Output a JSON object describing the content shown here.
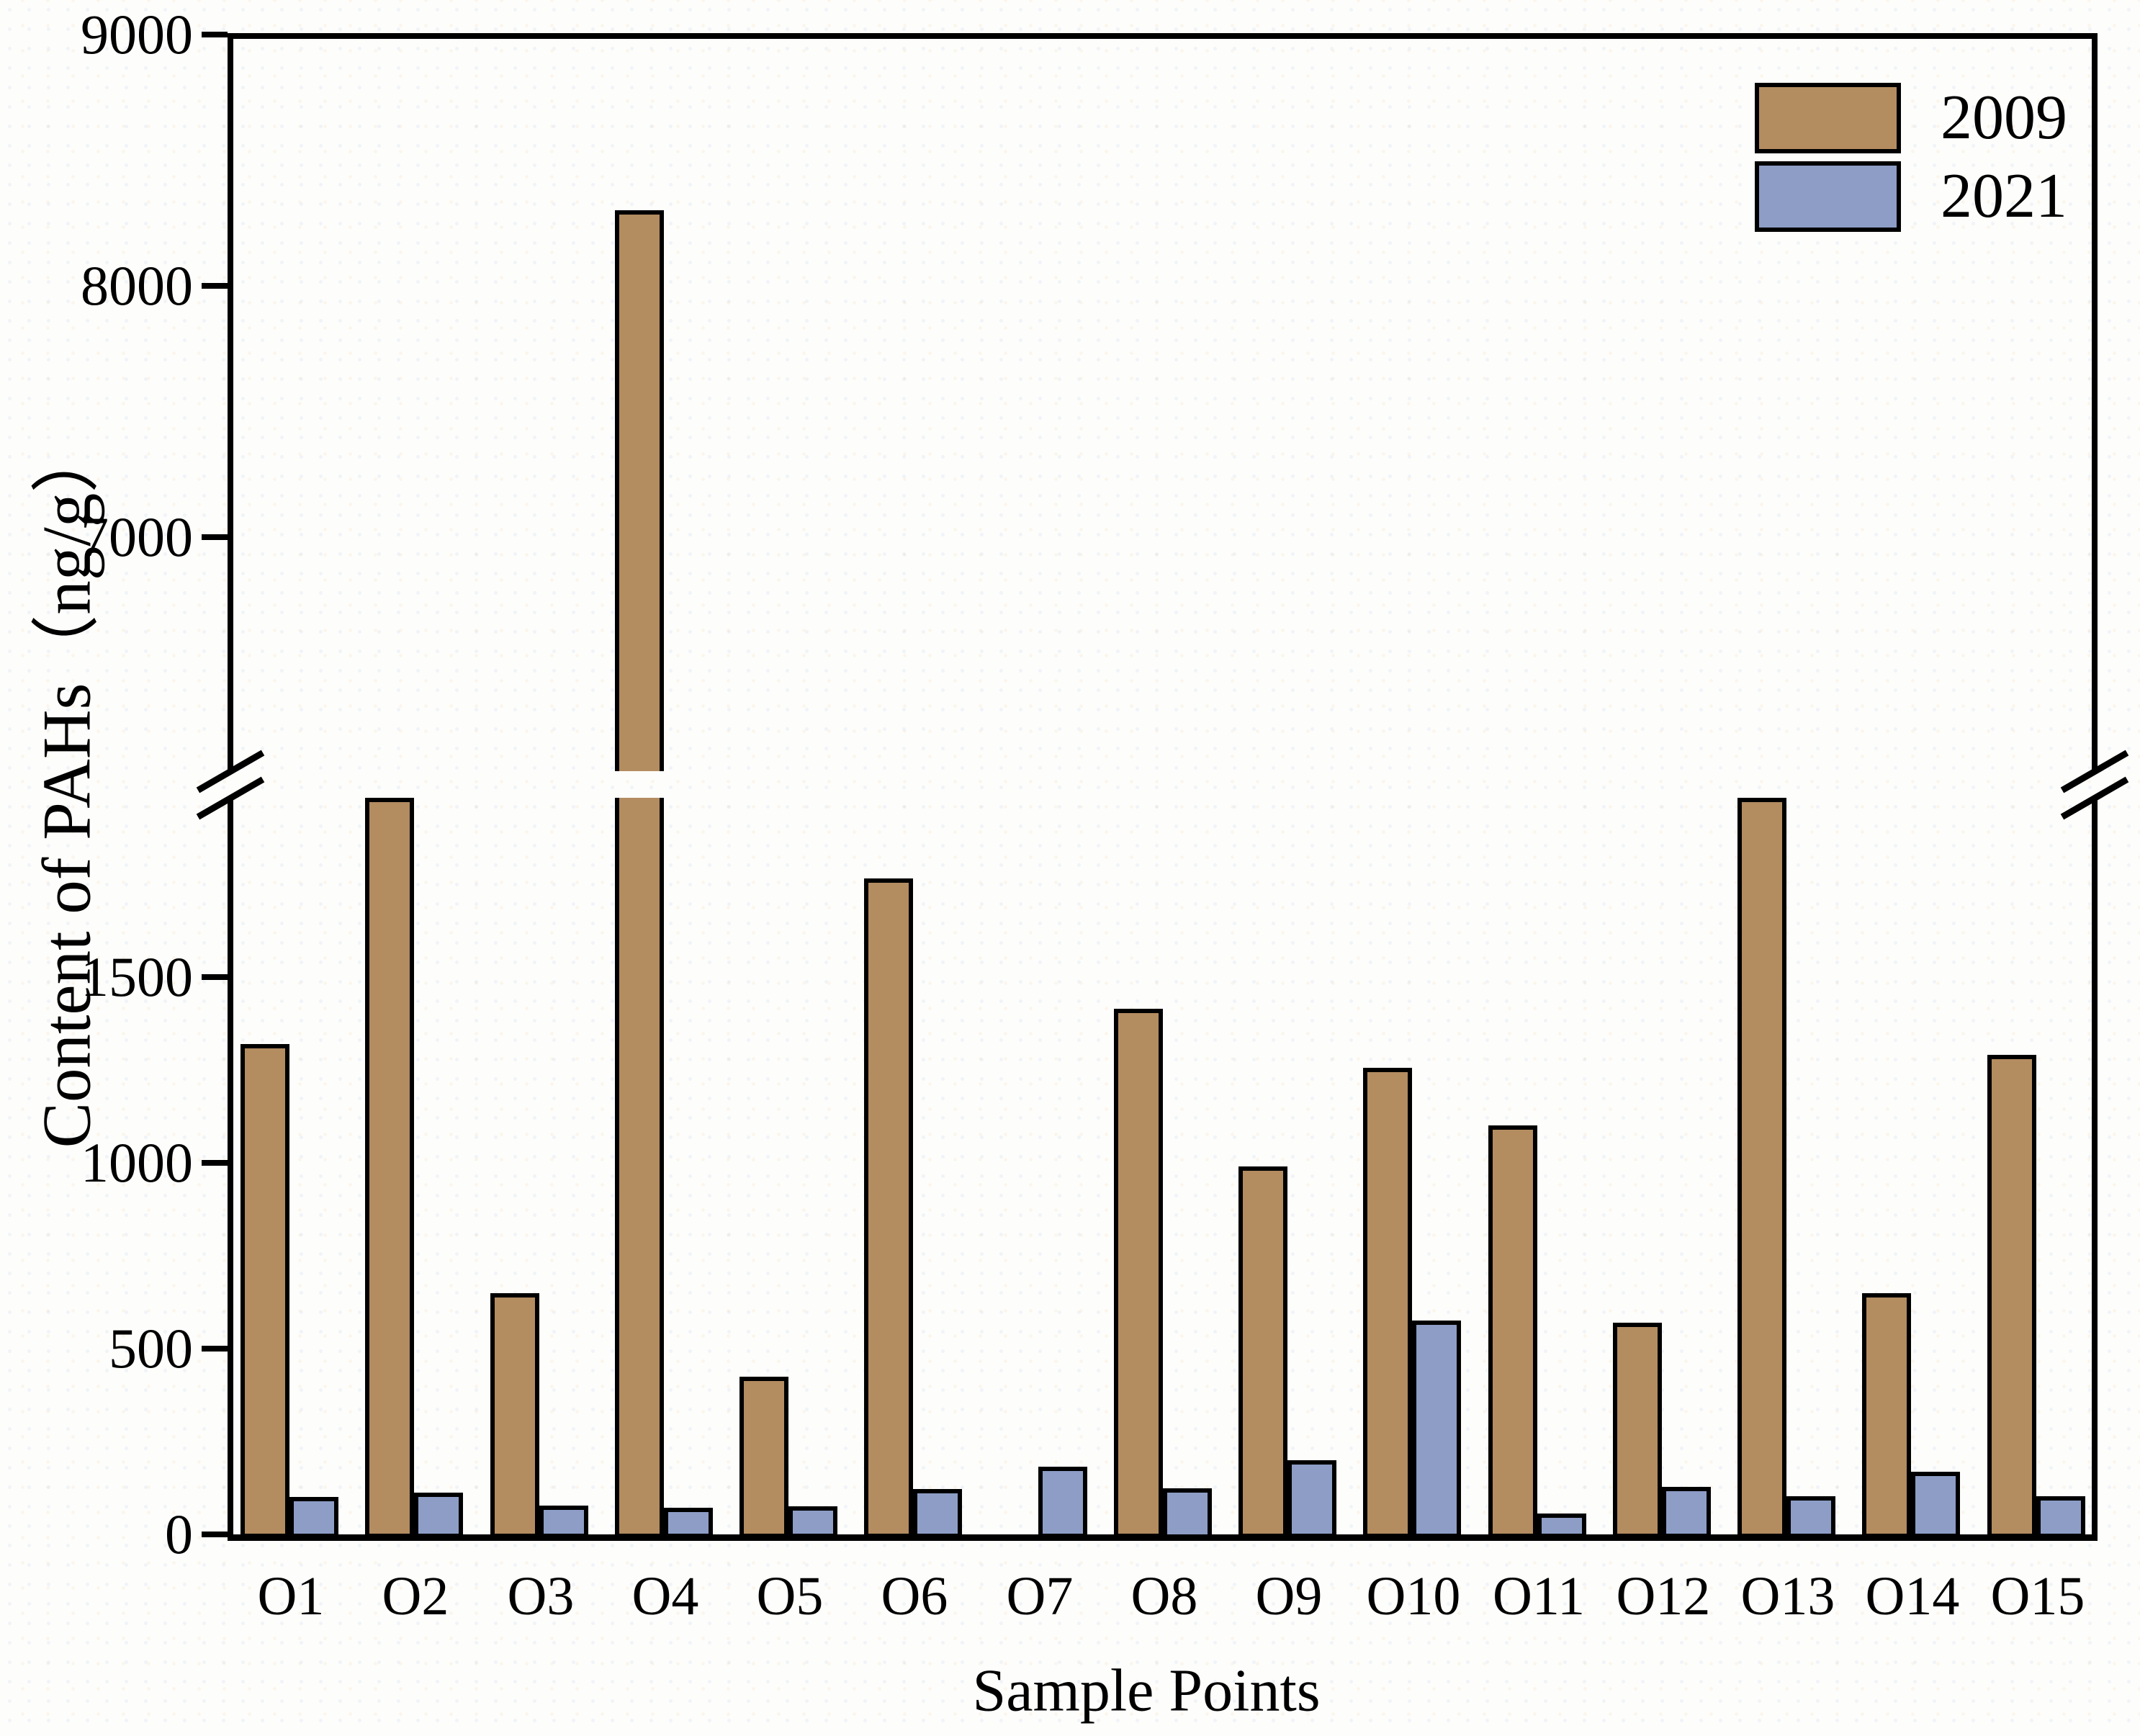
{
  "figure": {
    "y_axis_title": "Content of PAHs（ng/g）",
    "x_axis_title": "Sample Points",
    "legend": [
      {
        "label": "2009",
        "color": "#b38c60"
      },
      {
        "label": "2021",
        "color": "#8d9dc6"
      }
    ]
  },
  "chart_data": {
    "type": "bar",
    "title": "",
    "xlabel": "Sample Points",
    "ylabel": "Content of PAHs（ng/g）",
    "categories": [
      "O1",
      "O2",
      "O3",
      "O4",
      "O5",
      "O6",
      "O7",
      "O8",
      "O9",
      "O10",
      "O11",
      "O12",
      "O13",
      "O14",
      "O15"
    ],
    "series": [
      {
        "name": "2009",
        "color": "#b38c60",
        "values": [
          1320,
          1985,
          650,
          8300,
          425,
          1765,
          0,
          1415,
          990,
          1255,
          1100,
          570,
          1985,
          650,
          1290
        ]
      },
      {
        "name": "2021",
        "color": "#8d9dc6",
        "values": [
          100,
          113,
          78,
          72,
          76,
          122,
          182,
          125,
          200,
          575,
          56,
          128,
          102,
          168,
          103
        ]
      }
    ],
    "y_axis": {
      "lower_ticks": [
        0,
        500,
        1000,
        1500
      ],
      "upper_ticks": [
        7000,
        8000,
        9000
      ],
      "axis_break": {
        "lower_max": 1984,
        "upper_min": 6070
      },
      "ylim": [
        0,
        9000
      ]
    },
    "grid": false,
    "legend_position": "top-right",
    "bar_outline_color": "#000000",
    "notes": "Y axis broken between ~1984 and ~6070 ng/g. O4 2009 bar crosses the break (~8300). O2 and O13 2009 bars are clipped at the break. O7 has no visible 2009 bar."
  }
}
